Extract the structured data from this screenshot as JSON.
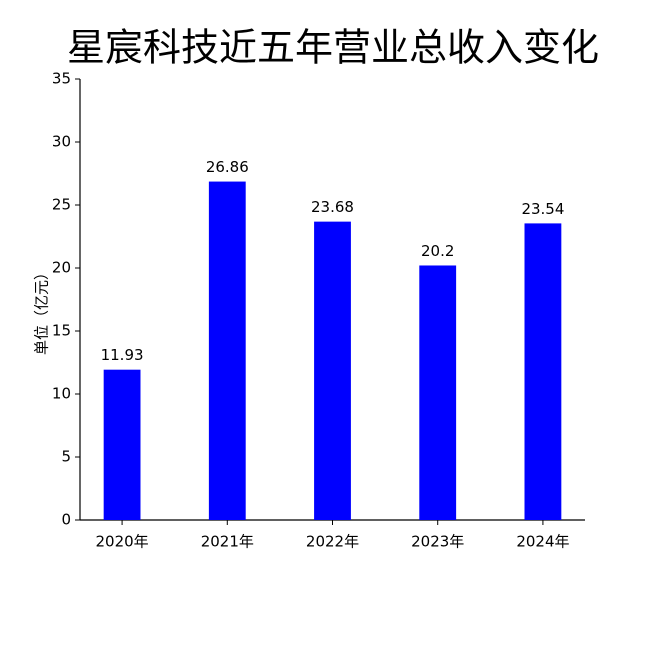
{
  "chart_data": {
    "type": "bar",
    "title": "星宸科技近五年营业总收入变化",
    "y_label": "单位（亿元）",
    "categories": [
      "2020年",
      "2021年",
      "2022年",
      "2023年",
      "2024年"
    ],
    "values": [
      11.93,
      26.86,
      23.68,
      20.2,
      23.54
    ],
    "color": "#0000ff",
    "ylim": [
      0,
      35
    ],
    "yticks": [
      0,
      5,
      10,
      15,
      20,
      25,
      30,
      35
    ],
    "grid": false
  }
}
